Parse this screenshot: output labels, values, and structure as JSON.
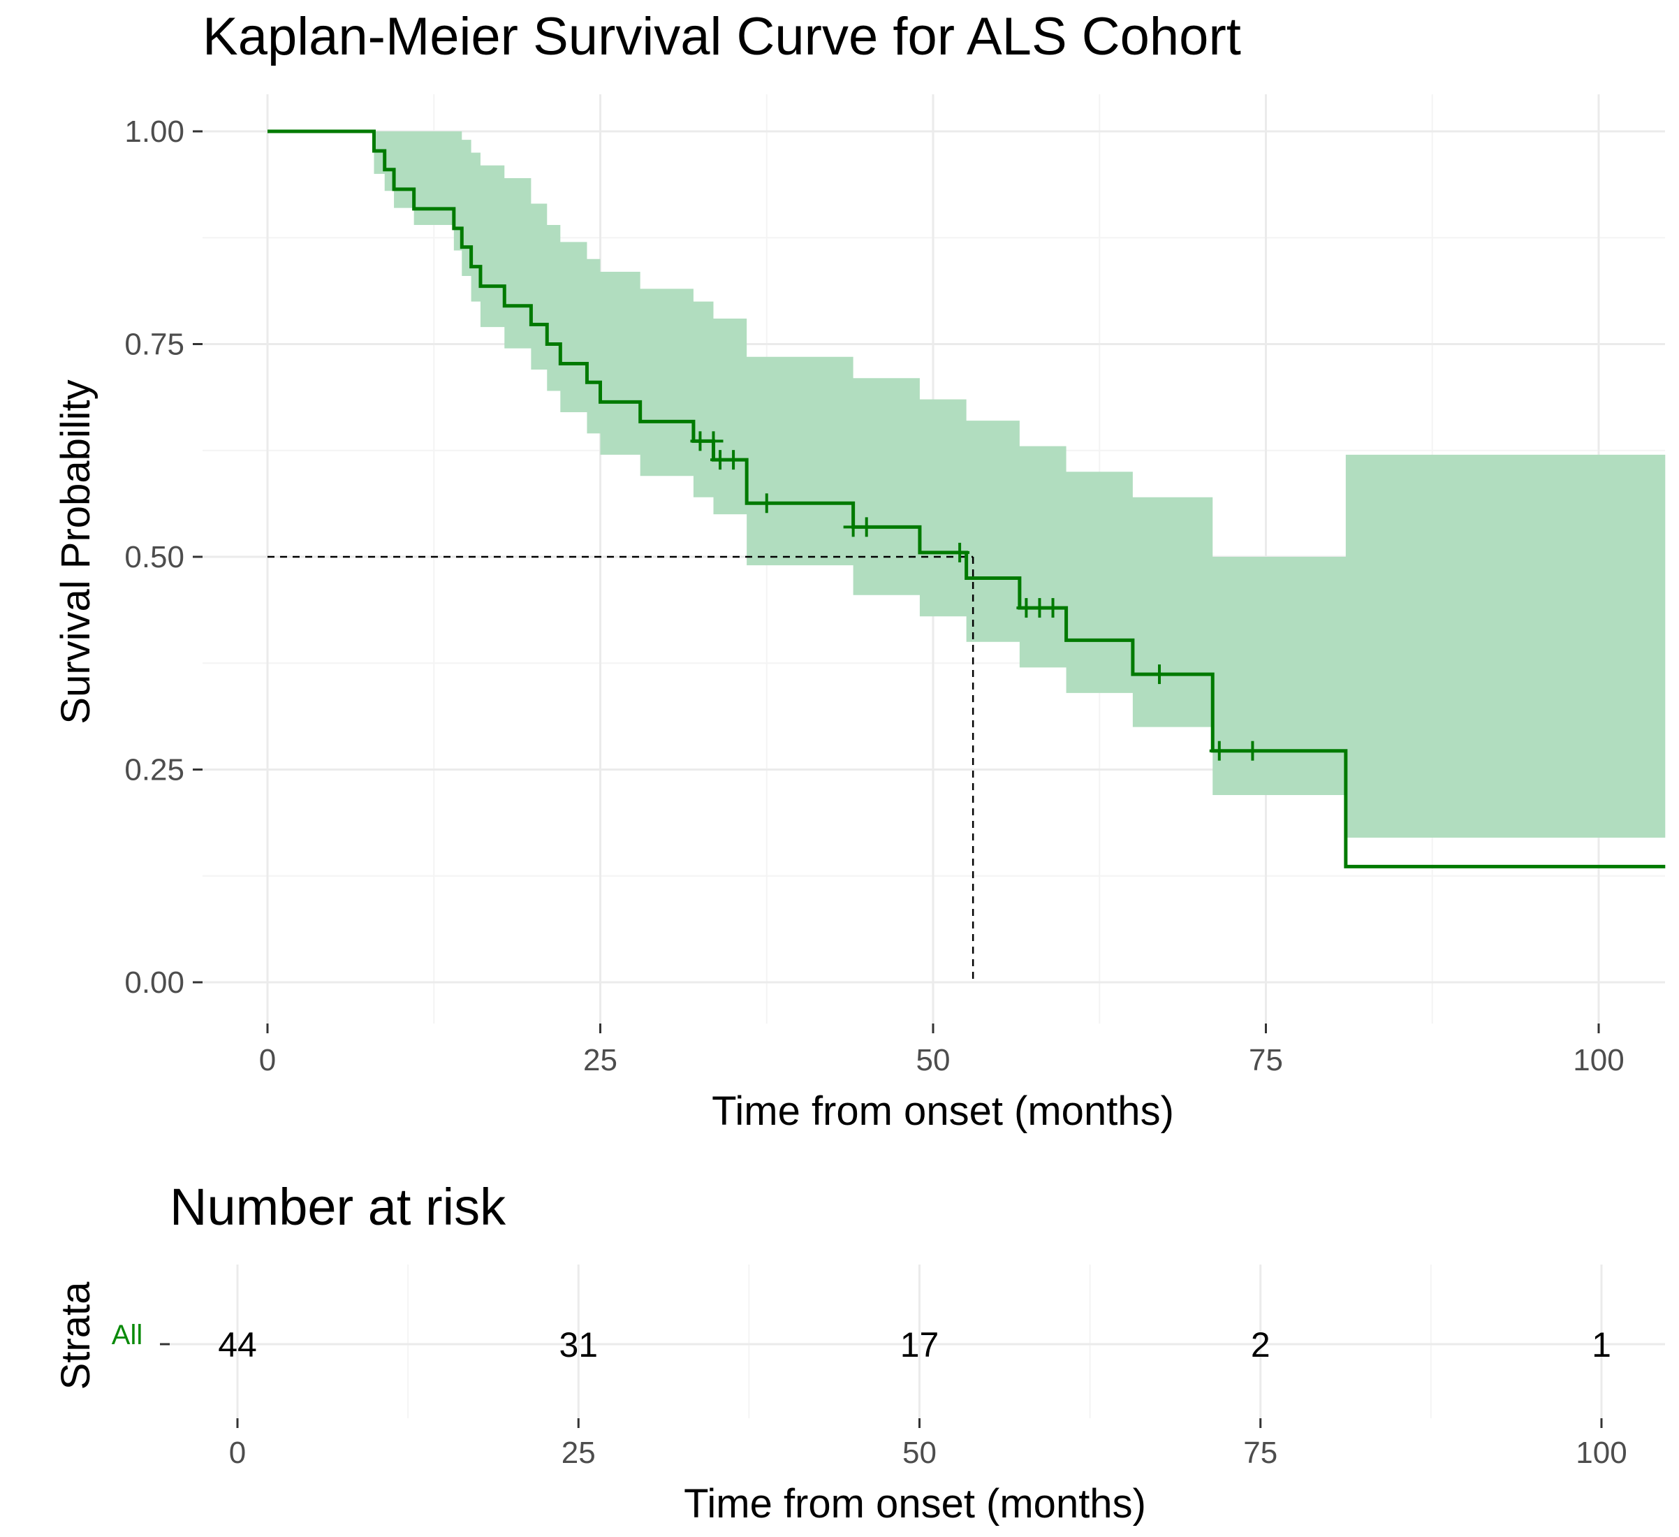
{
  "colors": {
    "curve": "#007a00",
    "band": "#b1ddbf",
    "grid_major": "#ebebeb",
    "grid_minor": "#f4f4f4",
    "tick": "#333333",
    "tick_label": "#4d4d4d",
    "strata_label": "#0a8a0a"
  },
  "chart_data": {
    "type": "line",
    "title": "Kaplan-Meier Survival Curve for ALS Cohort",
    "xlabel": "Time from onset (months)",
    "ylabel": "Survival Probability",
    "xlim": [
      -5,
      105
    ],
    "ylim": [
      -0.04,
      1.04
    ],
    "x_ticks": [
      0,
      25,
      50,
      75,
      100
    ],
    "x_tick_labels": [
      "0",
      "25",
      "50",
      "75",
      "100"
    ],
    "y_ticks": [
      0,
      0.25,
      0.5,
      0.75,
      1
    ],
    "y_tick_labels": [
      "0.00",
      "0.25",
      "0.50",
      "0.75",
      "1.00"
    ],
    "grid": true,
    "series": [
      {
        "name": "All",
        "step_x": [
          0,
          8,
          8.8,
          9.5,
          11,
          14,
          14.6,
          15.3,
          16,
          17.8,
          19.8,
          21,
          22,
          24,
          25,
          28,
          32,
          33.5,
          36,
          44,
          49,
          52.5,
          56.5,
          60,
          65,
          71,
          81,
          105
        ],
        "step_y": [
          1,
          0.977,
          0.955,
          0.932,
          0.909,
          0.886,
          0.864,
          0.841,
          0.818,
          0.795,
          0.773,
          0.75,
          0.727,
          0.705,
          0.682,
          0.659,
          0.636,
          0.614,
          0.563,
          0.535,
          0.505,
          0.475,
          0.44,
          0.402,
          0.362,
          0.272,
          0.136,
          0.136
        ],
        "ci_upper": [
          1,
          1,
          1,
          1,
          1,
          1,
          0.99,
          0.975,
          0.96,
          0.945,
          0.915,
          0.89,
          0.87,
          0.85,
          0.835,
          0.815,
          0.8,
          0.78,
          0.735,
          0.71,
          0.685,
          0.66,
          0.63,
          0.6,
          0.57,
          0.5,
          0.62,
          0.62
        ],
        "ci_lower": [
          1,
          0.95,
          0.93,
          0.91,
          0.89,
          0.86,
          0.83,
          0.8,
          0.77,
          0.745,
          0.72,
          0.695,
          0.67,
          0.645,
          0.62,
          0.595,
          0.57,
          0.55,
          0.49,
          0.455,
          0.43,
          0.4,
          0.37,
          0.34,
          0.3,
          0.22,
          0.17,
          0.17
        ],
        "censor_x": [
          32.5,
          33.5,
          34,
          35,
          37.5,
          44,
          45,
          52,
          57,
          58,
          59,
          67,
          71.5,
          74
        ],
        "censor_y": [
          0.636,
          0.636,
          0.614,
          0.614,
          0.563,
          0.535,
          0.535,
          0.505,
          0.44,
          0.44,
          0.44,
          0.362,
          0.272,
          0.272
        ]
      }
    ],
    "median_survival": {
      "x": 53,
      "y": 0.5
    },
    "risk_table": {
      "title": "Number at risk",
      "ylabel": "Strata",
      "strata": "All",
      "xlabel": "Time from onset (months)",
      "x_ticks": [
        0,
        25,
        50,
        75,
        100
      ],
      "x_tick_labels": [
        "0",
        "25",
        "50",
        "75",
        "100"
      ],
      "counts": [
        "44",
        "31",
        "17",
        "2",
        "1"
      ]
    }
  }
}
